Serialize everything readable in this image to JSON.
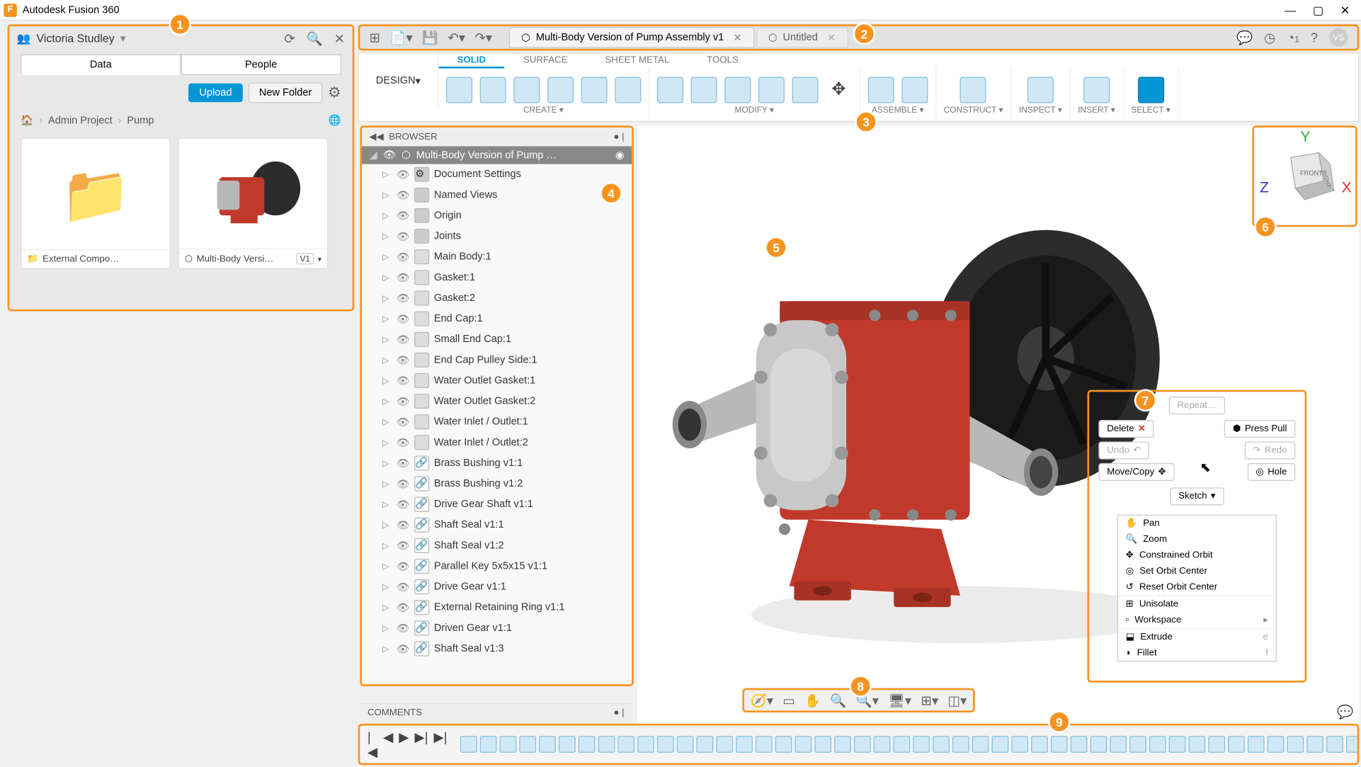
{
  "app_title": "Autodesk Fusion 360",
  "user_name": "Victoria Studley",
  "user_initials": "VS",
  "data_panel": {
    "tabs": [
      "Data",
      "People"
    ],
    "active_tab": "Data",
    "upload_label": "Upload",
    "new_folder_label": "New Folder",
    "breadcrumb": [
      "Admin Project",
      "Pump"
    ],
    "thumbs": [
      {
        "label": "External Compo…",
        "type": "folder"
      },
      {
        "label": "Multi-Body Versi…",
        "type": "model",
        "version": "V1"
      }
    ]
  },
  "file_tabs": [
    {
      "label": "Multi-Body Version of Pump Assembly v1",
      "active": true
    },
    {
      "label": "Untitled",
      "active": false
    }
  ],
  "job_count": "1",
  "ribbon": {
    "workspace": "DESIGN",
    "tabs": [
      "SOLID",
      "SURFACE",
      "SHEET METAL",
      "TOOLS"
    ],
    "active_tab": "SOLID",
    "groups": [
      "CREATE",
      "MODIFY",
      "ASSEMBLE",
      "CONSTRUCT",
      "INSPECT",
      "INSERT",
      "SELECT"
    ]
  },
  "browser": {
    "title": "BROWSER",
    "root": "Multi-Body Version of Pump …",
    "items": [
      {
        "label": "Document Settings",
        "icon": "gear"
      },
      {
        "label": "Named Views",
        "icon": "folder"
      },
      {
        "label": "Origin",
        "icon": "folder"
      },
      {
        "label": "Joints",
        "icon": "folder"
      },
      {
        "label": "Main Body:1",
        "icon": "body"
      },
      {
        "label": "Gasket:1",
        "icon": "body"
      },
      {
        "label": "Gasket:2",
        "icon": "body"
      },
      {
        "label": "End Cap:1",
        "icon": "body"
      },
      {
        "label": "Small End Cap:1",
        "icon": "body"
      },
      {
        "label": "End Cap Pulley Side:1",
        "icon": "body"
      },
      {
        "label": "Water Outlet Gasket:1",
        "icon": "body"
      },
      {
        "label": "Water Outlet Gasket:2",
        "icon": "body"
      },
      {
        "label": "Water Inlet / Outlet:1",
        "icon": "body"
      },
      {
        "label": "Water Inlet / Outlet:2",
        "icon": "body"
      },
      {
        "label": "Brass Bushing v1:1",
        "icon": "link"
      },
      {
        "label": "Brass Bushing v1:2",
        "icon": "link"
      },
      {
        "label": "Drive Gear Shaft v1:1",
        "icon": "link"
      },
      {
        "label": "Shaft Seal v1:1",
        "icon": "link"
      },
      {
        "label": "Shaft Seal v1:2",
        "icon": "link"
      },
      {
        "label": "Parallel Key 5x5x15 v1:1",
        "icon": "link"
      },
      {
        "label": "Drive Gear v1:1",
        "icon": "link"
      },
      {
        "label": "External Retaining Ring v1:1",
        "icon": "link"
      },
      {
        "label": "Driven Gear v1:1",
        "icon": "link"
      },
      {
        "label": "Shaft Seal v1:3",
        "icon": "link"
      }
    ]
  },
  "comments_title": "COMMENTS",
  "marking_menu": {
    "repeat": "Repeat…",
    "delete": "Delete",
    "press_pull": "Press Pull",
    "undo": "Undo",
    "redo": "Redo",
    "move_copy": "Move/Copy",
    "hole": "Hole",
    "sketch": "Sketch",
    "list": [
      {
        "label": "Pan",
        "icon": "hand"
      },
      {
        "label": "Zoom",
        "icon": "zoom"
      },
      {
        "label": "Constrained Orbit",
        "icon": "orbit"
      },
      {
        "label": "Set Orbit Center",
        "icon": "target"
      },
      {
        "label": "Reset Orbit Center",
        "icon": "reset"
      },
      {
        "label": "Unisolate",
        "icon": "grid",
        "sep_before": true
      },
      {
        "label": "Workspace",
        "icon": "",
        "submenu": true
      },
      {
        "label": "Extrude",
        "icon": "extrude",
        "key": "e",
        "sep_before": true
      },
      {
        "label": "Fillet",
        "icon": "fillet",
        "key": "f"
      }
    ]
  },
  "viewcube": {
    "faces": [
      "FRONT",
      "RIGHT"
    ],
    "axes": [
      "X",
      "Y",
      "Z"
    ]
  },
  "timeline_count": 48,
  "callouts": [
    "1",
    "2",
    "3",
    "4",
    "5",
    "6",
    "7",
    "8",
    "9"
  ],
  "colors": {
    "accent_orange": "#f7931e",
    "accent_blue": "#0696d7",
    "pump_red": "#c0392b",
    "pump_dark": "#2c2c2c",
    "pump_steel": "#b8b8b8"
  }
}
